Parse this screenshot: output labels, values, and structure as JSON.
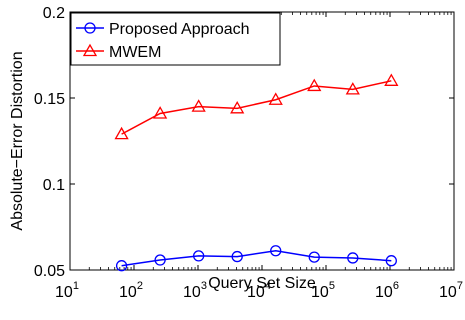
{
  "chart_data": {
    "type": "line",
    "title": "",
    "xlabel": "Query Set Size",
    "ylabel": "Absolute−Error Distortion",
    "x_scale": "log",
    "xlim": [
      10,
      10000000
    ],
    "ylim": [
      0.05,
      0.2
    ],
    "x_ticks": [
      {
        "value": 10,
        "base": "10",
        "exp": "1"
      },
      {
        "value": 100,
        "base": "10",
        "exp": "2"
      },
      {
        "value": 1000,
        "base": "10",
        "exp": "3"
      },
      {
        "value": 10000,
        "base": "10",
        "exp": "4"
      },
      {
        "value": 100000,
        "base": "10",
        "exp": "5"
      },
      {
        "value": 1000000,
        "base": "10",
        "exp": "6"
      },
      {
        "value": 10000000,
        "base": "10",
        "exp": "7"
      }
    ],
    "y_ticks": [
      {
        "value": 0.05,
        "label": "0.05"
      },
      {
        "value": 0.1,
        "label": "0.1"
      },
      {
        "value": 0.15,
        "label": "0.15"
      },
      {
        "value": 0.2,
        "label": "0.2"
      }
    ],
    "grid": false,
    "legend_position": "top-left",
    "x": [
      64,
      256,
      1024,
      4096,
      16384,
      65536,
      262144,
      1048576
    ],
    "series": [
      {
        "name": "Proposed Approach",
        "color": "#0000ff",
        "marker": "circle",
        "values": [
          0.0525,
          0.0558,
          0.0582,
          0.0578,
          0.0612,
          0.0575,
          0.057,
          0.0554
        ]
      },
      {
        "name": "MWEM",
        "color": "#ff0000",
        "marker": "triangle",
        "values": [
          0.129,
          0.141,
          0.145,
          0.144,
          0.149,
          0.157,
          0.155,
          0.16
        ]
      }
    ]
  }
}
